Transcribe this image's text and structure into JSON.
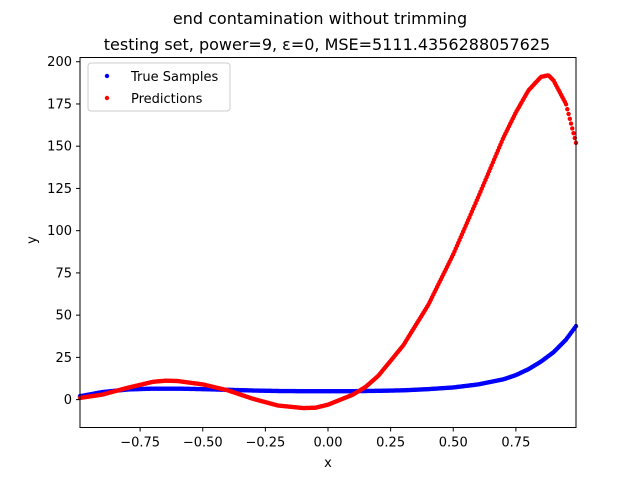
{
  "chart_data": {
    "type": "scatter",
    "title": "end contamination without trimming",
    "subtitle": "testing set, power=9, ε=0, MSE=5111.4356288057625",
    "xlabel": "x",
    "ylabel": "y",
    "xlim": [
      -0.99,
      0.99
    ],
    "ylim": [
      -16.5,
      202.5
    ],
    "xticks": [
      -0.75,
      -0.5,
      -0.25,
      0.0,
      0.25,
      0.5,
      0.75
    ],
    "xtick_labels": [
      "−0.75",
      "−0.50",
      "−0.25",
      "0.00",
      "0.25",
      "0.50",
      "0.75"
    ],
    "yticks": [
      0,
      25,
      50,
      75,
      100,
      125,
      150,
      175,
      200
    ],
    "ytick_labels": [
      "0",
      "25",
      "50",
      "75",
      "100",
      "125",
      "150",
      "175",
      "200"
    ],
    "grid": false,
    "legend_position": "top-left",
    "series": [
      {
        "name": "True Samples",
        "color": "#0000ff",
        "x": [
          -0.99,
          -0.9,
          -0.8,
          -0.7,
          -0.6,
          -0.5,
          -0.4,
          -0.3,
          -0.2,
          -0.1,
          0.0,
          0.1,
          0.2,
          0.3,
          0.4,
          0.5,
          0.6,
          0.7,
          0.75,
          0.8,
          0.85,
          0.9,
          0.95,
          0.99
        ],
        "values": [
          2.0,
          4.5,
          6.0,
          6.5,
          6.5,
          6.2,
          5.8,
          5.4,
          5.1,
          5.0,
          5.0,
          5.0,
          5.2,
          5.5,
          6.2,
          7.2,
          9.0,
          12.0,
          14.5,
          18.0,
          22.5,
          28.0,
          35.5,
          43.5
        ]
      },
      {
        "name": "Predictions",
        "color": "#ff0000",
        "x": [
          -0.99,
          -0.9,
          -0.8,
          -0.7,
          -0.65,
          -0.6,
          -0.5,
          -0.4,
          -0.3,
          -0.2,
          -0.1,
          -0.05,
          0.0,
          0.1,
          0.15,
          0.2,
          0.3,
          0.4,
          0.5,
          0.6,
          0.7,
          0.75,
          0.8,
          0.85,
          0.88,
          0.9,
          0.95,
          0.99
        ],
        "values": [
          1.0,
          3.0,
          7.0,
          10.5,
          11.2,
          11.0,
          9.0,
          5.5,
          0.5,
          -3.5,
          -5.0,
          -4.8,
          -3.0,
          3.0,
          7.5,
          14.0,
          32.0,
          56.0,
          86.0,
          120.0,
          155.0,
          170.0,
          183.0,
          191.0,
          192.0,
          189.0,
          175.0,
          152.0
        ]
      }
    ]
  }
}
